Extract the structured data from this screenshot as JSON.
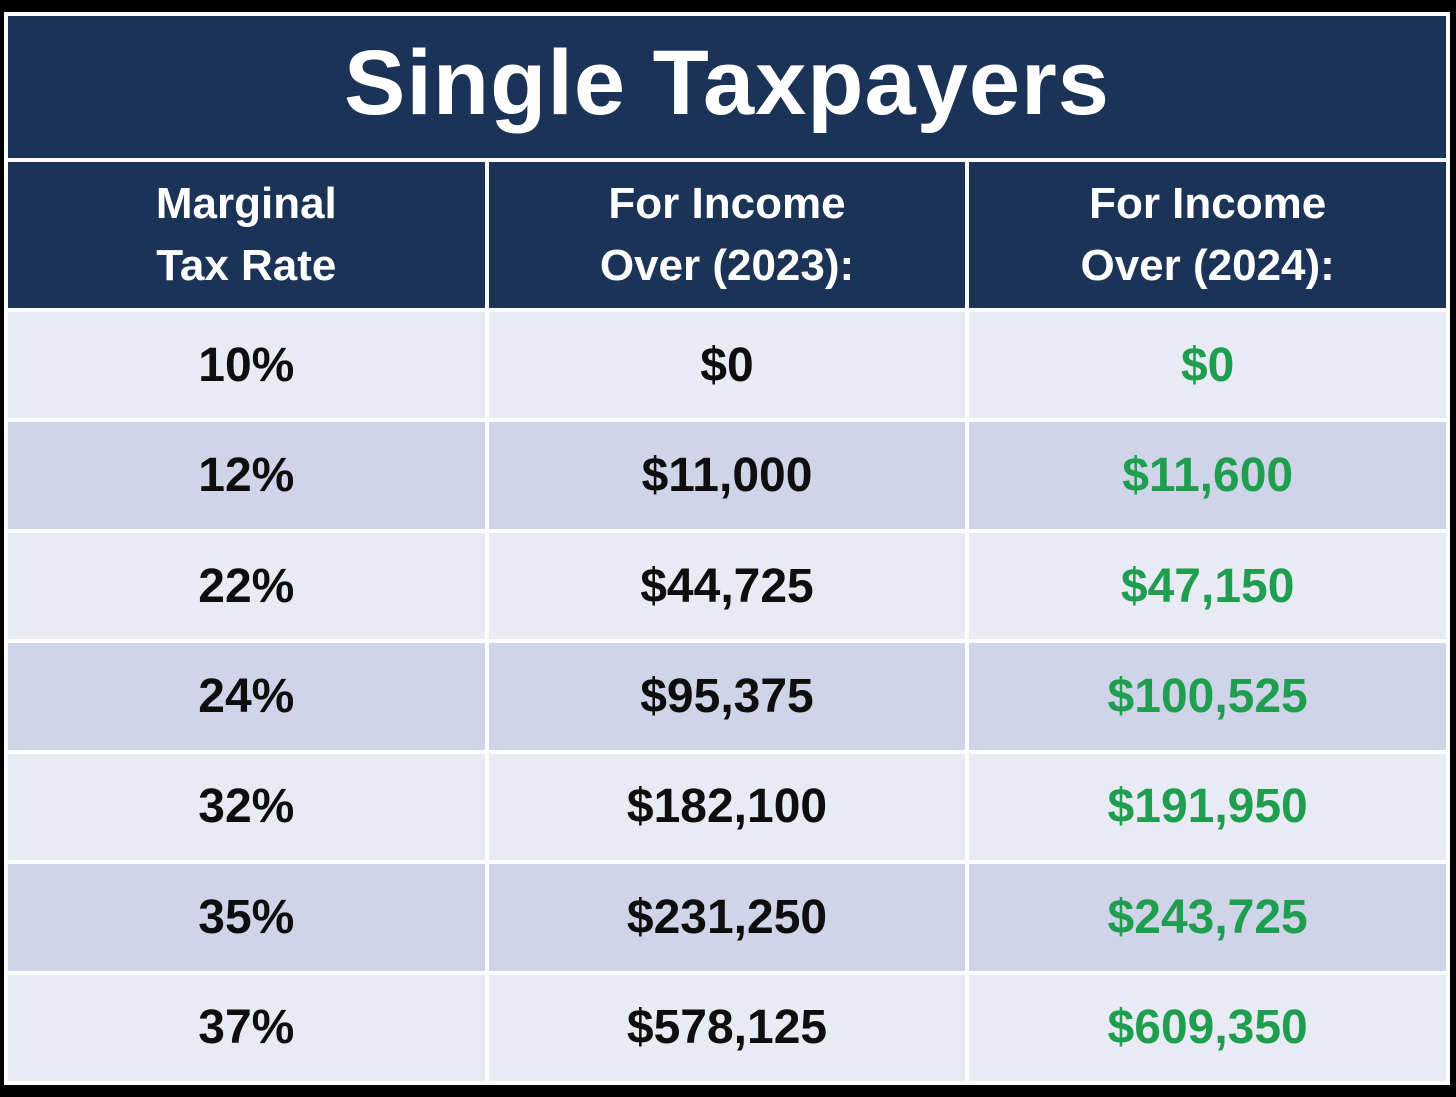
{
  "title": "Single Taxpayers",
  "header": {
    "columns": [
      {
        "line1": "Marginal",
        "line2": "Tax Rate"
      },
      {
        "line1": "For Income",
        "line2": "Over (2023):"
      },
      {
        "line1": "For Income",
        "line2": "Over (2024):"
      }
    ]
  },
  "rows": [
    {
      "rate": "10%",
      "y2023": "$0",
      "y2024": "$0"
    },
    {
      "rate": "12%",
      "y2023": "$11,000",
      "y2024": "$11,600"
    },
    {
      "rate": "22%",
      "y2023": "$44,725",
      "y2024": "$47,150"
    },
    {
      "rate": "24%",
      "y2023": "$95,375",
      "y2024": "$100,525"
    },
    {
      "rate": "32%",
      "y2023": "$182,100",
      "y2024": "$191,950"
    },
    {
      "rate": "35%",
      "y2023": "$231,250",
      "y2024": "$243,725"
    },
    {
      "rate": "37%",
      "y2023": "$578,125",
      "y2024": "$609,350"
    }
  ],
  "colors": {
    "navy_header": "#1b3356",
    "row_light": "#e8eaf4",
    "row_dark": "#cfd4e8",
    "green_2024_values": "#1f9e50",
    "text_dark": "#0e0e0e",
    "text_light": "#ffffff",
    "separator_white": "#fdfdfd",
    "frame_black": "#000000"
  },
  "chart_data": {
    "type": "table",
    "title": "Single Taxpayers",
    "columns": [
      "Marginal Tax Rate",
      "For Income Over (2023):",
      "For Income Over (2024):"
    ],
    "rows": [
      [
        "10%",
        "$0",
        "$0"
      ],
      [
        "12%",
        "$11,000",
        "$11,600"
      ],
      [
        "22%",
        "$44,725",
        "$47,150"
      ],
      [
        "24%",
        "$95,375",
        "$100,525"
      ],
      [
        "32%",
        "$182,100",
        "$191,950"
      ],
      [
        "35%",
        "$231,250",
        "$243,725"
      ],
      [
        "37%",
        "$578,125",
        "$609,350"
      ]
    ],
    "notes": {
      "rate_values_numeric": [
        0.1,
        0.12,
        0.22,
        0.24,
        0.32,
        0.35,
        0.37
      ],
      "income_over_2023_numeric": [
        0,
        11000,
        44725,
        95375,
        182100,
        231250,
        578125
      ],
      "income_over_2024_numeric": [
        0,
        11600,
        47150,
        100525,
        191950,
        243725,
        609350
      ]
    }
  }
}
